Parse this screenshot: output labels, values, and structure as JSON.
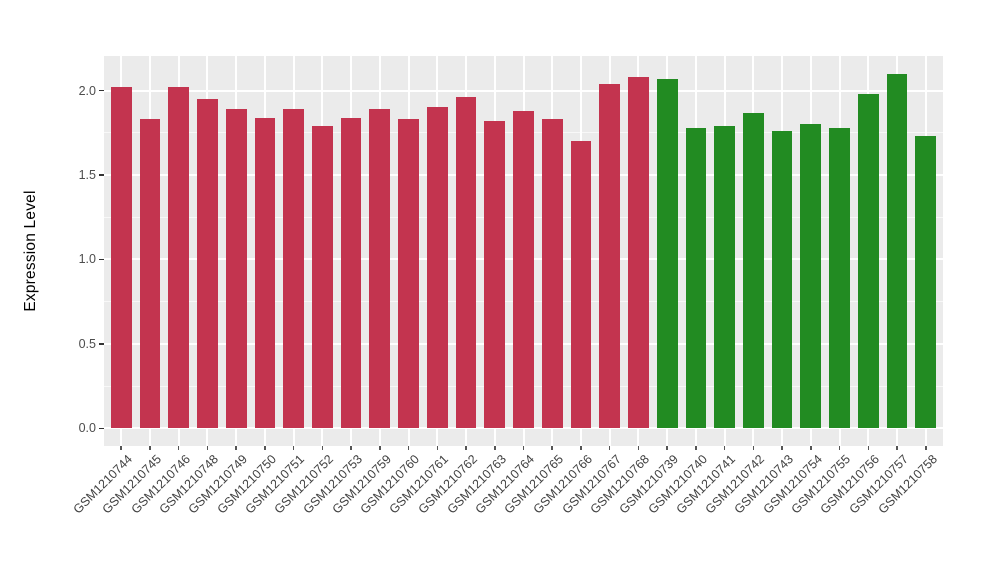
{
  "chart_data": {
    "type": "bar",
    "title": "",
    "xlabel": "",
    "ylabel": "Expression Level",
    "legend_position": "none",
    "panel_background": "#EBEBEB",
    "grid_color": "#FFFFFF",
    "grid": "major and minor horizontal white lines, vertical white line at each category",
    "axis_text_color": "#4D4D4D",
    "ylim": [
      -0.105,
      2.205
    ],
    "yticks_major": [
      0.0,
      0.5,
      1.0,
      1.5,
      2.0
    ],
    "ytick_labels": [
      "0.0",
      "0.5",
      "1.0",
      "1.5",
      "2.0"
    ],
    "yticks_minor": [
      0.25,
      0.75,
      1.25,
      1.75
    ],
    "categories": [
      "GSM1210744",
      "GSM1210745",
      "GSM1210746",
      "GSM1210748",
      "GSM1210749",
      "GSM1210750",
      "GSM1210751",
      "GSM1210752",
      "GSM1210753",
      "GSM1210759",
      "GSM1210760",
      "GSM1210761",
      "GSM1210762",
      "GSM1210763",
      "GSM1210764",
      "GSM1210765",
      "GSM1210766",
      "GSM1210767",
      "GSM1210768",
      "GSM1210739",
      "GSM1210740",
      "GSM1210741",
      "GSM1210742",
      "GSM1210743",
      "GSM1210754",
      "GSM1210755",
      "GSM1210756",
      "GSM1210757",
      "GSM1210758"
    ],
    "values": [
      2.02,
      1.83,
      2.02,
      1.95,
      1.89,
      1.84,
      1.89,
      1.79,
      1.84,
      1.89,
      1.83,
      1.9,
      1.96,
      1.82,
      1.88,
      1.83,
      1.7,
      2.04,
      2.08,
      2.07,
      1.78,
      1.79,
      1.87,
      1.76,
      1.8,
      1.78,
      1.98,
      2.1,
      1.73
    ],
    "groups": [
      "group1",
      "group1",
      "group1",
      "group1",
      "group1",
      "group1",
      "group1",
      "group1",
      "group1",
      "group1",
      "group1",
      "group1",
      "group1",
      "group1",
      "group1",
      "group1",
      "group1",
      "group1",
      "group1",
      "group2",
      "group2",
      "group2",
      "group2",
      "group2",
      "group2",
      "group2",
      "group2",
      "group2",
      "group2"
    ],
    "colors": {
      "group1": "#C3344F",
      "group2": "#228B22"
    }
  }
}
